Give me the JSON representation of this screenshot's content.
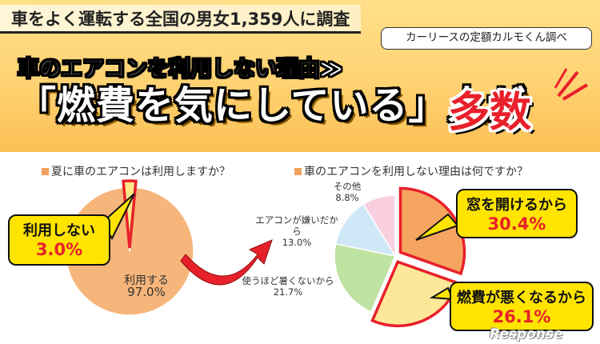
{
  "header": {
    "survey": "車をよく運転する全国の男女1,359人に調査",
    "source": "カーリースの定額カルモくん調べ",
    "sub_title": "車のエアコンを利用しない理由≫",
    "main_title": "「燃費を気にしている」人が",
    "accent_title": "多数"
  },
  "colors": {
    "accent_red": "#e8202a",
    "callout_yellow": "#ffe400",
    "header_orange": "#ffd272",
    "slice_orange": "#f6b57a"
  },
  "chart_data": [
    {
      "type": "pie",
      "title": "夏に車のエアコンは利用しますか？",
      "slices": [
        {
          "label": "利用する",
          "value": 97.0,
          "display": "97.0%",
          "color": "#f6b57a"
        },
        {
          "label": "利用しない",
          "value": 3.0,
          "display": "3.0%",
          "color": "#fde88a",
          "highlight": true
        }
      ]
    },
    {
      "type": "pie",
      "title": "車のエアコンを利用しない理由は何ですか？",
      "slices": [
        {
          "label": "窓を開けるから",
          "value": 30.4,
          "display": "30.4%",
          "color": "#f6a560",
          "highlight": true
        },
        {
          "label": "燃費が悪くなるから",
          "value": 26.1,
          "display": "26.1%",
          "color": "#fde89a",
          "highlight": true
        },
        {
          "label": "使うほど暑くないから",
          "value": 21.7,
          "display": "21.7%",
          "color": "#bfe3a1"
        },
        {
          "label": "エアコンが嫌いだから",
          "value": 13.0,
          "display": "13.0%",
          "color": "#cfe8f7"
        },
        {
          "label": "その他",
          "value": 8.8,
          "display": "8.8%",
          "color": "#f9cfe0"
        }
      ]
    }
  ],
  "watermark": "Response"
}
